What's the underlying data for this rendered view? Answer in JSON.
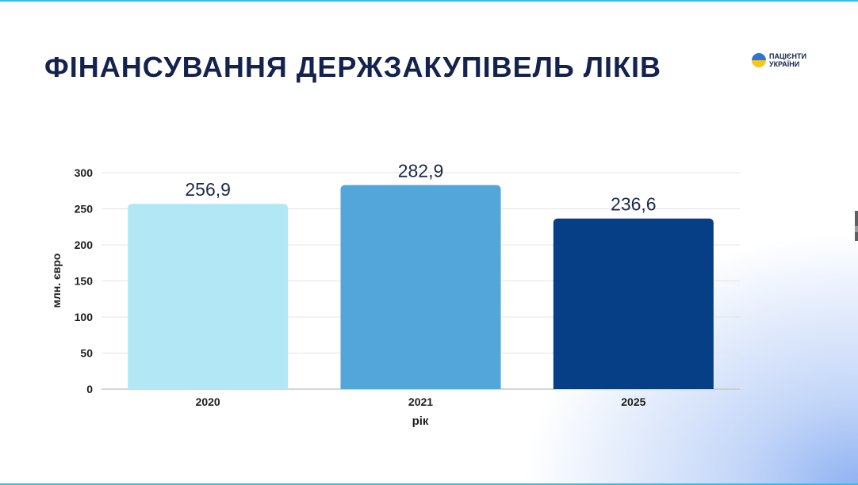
{
  "slide": {
    "title": "ФІНАНСУВАННЯ ДЕРЖЗАКУПІВЕЛЬ ЛІКІВ",
    "logo_text": "ПАЦІЄНТИ УКРАЇНИ",
    "logo_icon": "ukraine-flag-circle-icon"
  },
  "chart_data": {
    "type": "bar",
    "categories": [
      "2020",
      "2021",
      "2025"
    ],
    "values": [
      256.9,
      282.9,
      236.6
    ],
    "value_labels": [
      "256,9",
      "282,9",
      "236,6"
    ],
    "colors": [
      "#b2e8f5",
      "#52a6da",
      "#063f86"
    ],
    "title": "",
    "xlabel": "рік",
    "ylabel": "млн. євро",
    "ylim": [
      0,
      300
    ],
    "yticks": [
      "0",
      "50",
      "100",
      "150",
      "200",
      "250",
      "300"
    ],
    "grid": true
  }
}
